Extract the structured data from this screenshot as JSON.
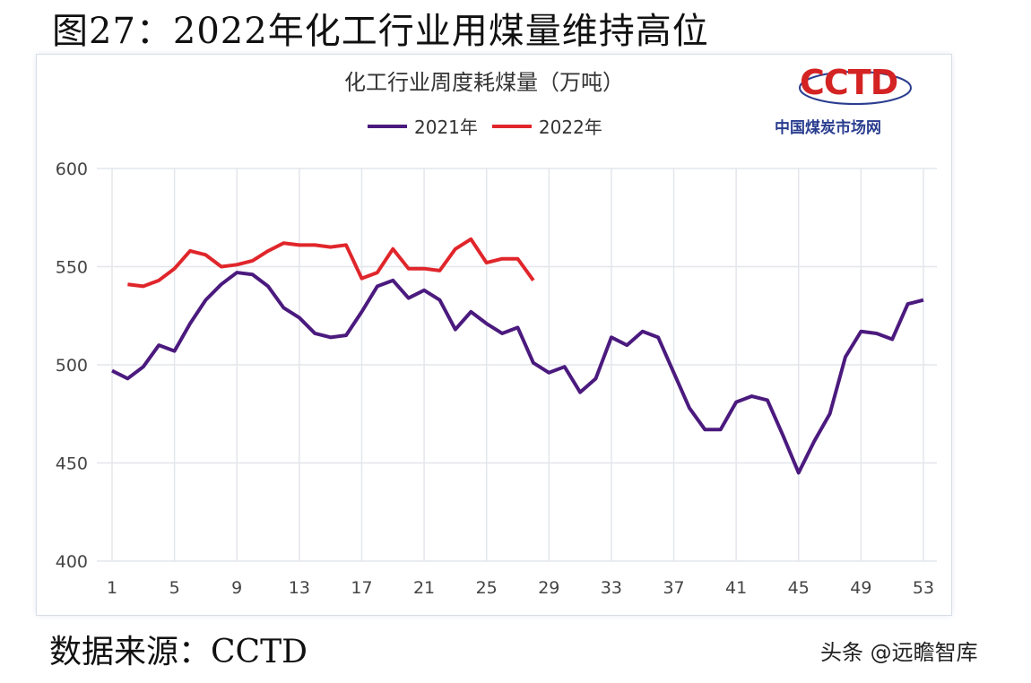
{
  "figure_title": "图27：2022年化工行业用煤量维持高位",
  "source": "数据来源：CCTD",
  "watermark": "头条 @远瞻智库",
  "logo": {
    "text": "CCTD",
    "subtitle": "中国煤炭市场网"
  },
  "chart_data": {
    "type": "line",
    "title": "化工行业周度耗煤量（万吨）",
    "xlabel": "",
    "ylabel": "",
    "ylim": [
      400,
      600
    ],
    "xlim": [
      1,
      53
    ],
    "yticks": [
      400,
      450,
      500,
      550,
      600
    ],
    "xticks": [
      1,
      5,
      9,
      13,
      17,
      21,
      25,
      29,
      33,
      37,
      41,
      45,
      49,
      53
    ],
    "grid": true,
    "legend_placement": "top",
    "series": [
      {
        "name": "2021年",
        "color": "#4b1a7e",
        "x": [
          1,
          2,
          3,
          4,
          5,
          6,
          7,
          8,
          9,
          10,
          11,
          12,
          13,
          14,
          15,
          16,
          17,
          18,
          19,
          20,
          21,
          22,
          23,
          24,
          25,
          26,
          27,
          28,
          29,
          30,
          31,
          32,
          33,
          34,
          35,
          36,
          37,
          38,
          39,
          40,
          41,
          42,
          43,
          44,
          45,
          46,
          47,
          48,
          49,
          50,
          51,
          52,
          53
        ],
        "values": [
          497,
          493,
          499,
          510,
          507,
          521,
          533,
          541,
          547,
          546,
          540,
          529,
          524,
          516,
          514,
          515,
          527,
          540,
          543,
          534,
          538,
          533,
          518,
          527,
          521,
          516,
          519,
          501,
          496,
          499,
          486,
          493,
          514,
          510,
          517,
          514,
          496,
          478,
          467,
          467,
          481,
          484,
          482,
          464,
          445,
          461,
          475,
          504,
          517,
          516,
          513,
          531,
          533
        ]
      },
      {
        "name": "2022年",
        "color": "#e0262b",
        "x": [
          2,
          3,
          4,
          5,
          6,
          7,
          8,
          9,
          10,
          11,
          12,
          13,
          14,
          15,
          16,
          17,
          18,
          19,
          20,
          21,
          22,
          23,
          24,
          25,
          26,
          27,
          28
        ],
        "values": [
          541,
          540,
          543,
          549,
          558,
          556,
          550,
          551,
          553,
          558,
          562,
          561,
          561,
          560,
          561,
          544,
          547,
          559,
          549,
          549,
          548,
          559,
          564,
          552,
          554,
          554,
          543
        ]
      }
    ]
  }
}
